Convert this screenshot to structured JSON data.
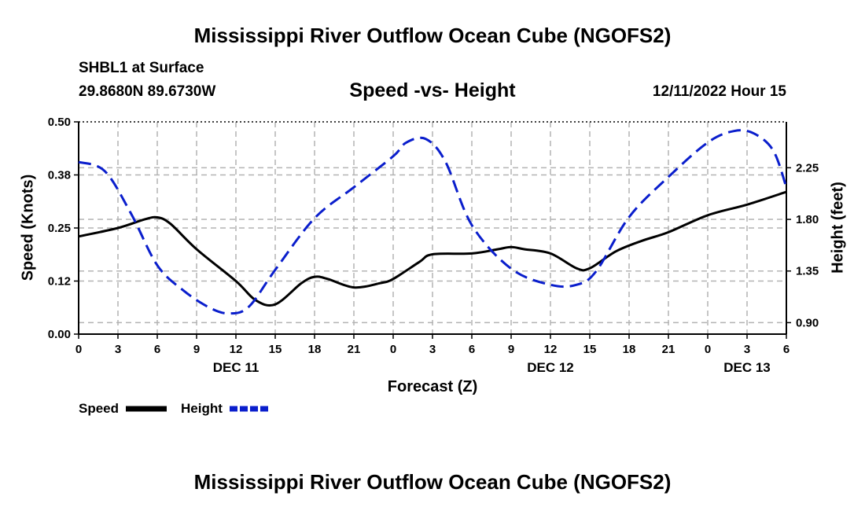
{
  "header": {
    "title": "Mississippi River Outflow Ocean Cube (NGOFS2)",
    "station": "SHBL1 at Surface",
    "coords": "29.8680N  89.6730W",
    "subtitle": "Speed -vs- Height",
    "datetime": "12/11/2022 Hour 15"
  },
  "footer": {
    "title": "Mississippi River Outflow Ocean Cube (NGOFS2)"
  },
  "legend": {
    "speed_label": "Speed",
    "height_label": "Height"
  },
  "colors": {
    "speed": "#000000",
    "height": "#0a1ecc",
    "grid": "#b4b4b4"
  },
  "chart_data": {
    "type": "line",
    "title": "Speed -vs- Height",
    "xlabel": "Forecast (Z)",
    "ylabel_left": "Speed (Knots)",
    "ylabel_right": "Height (feet)",
    "xlim": [
      0,
      54
    ],
    "x_ticks": [
      0,
      3,
      6,
      9,
      12,
      15,
      18,
      21,
      24,
      27,
      30,
      33,
      36,
      39,
      42,
      45,
      48,
      51,
      54
    ],
    "x_tick_labels": [
      "0",
      "3",
      "6",
      "9",
      "12",
      "15",
      "18",
      "21",
      "0",
      "3",
      "6",
      "9",
      "12",
      "15",
      "18",
      "21",
      "0",
      "3",
      "6"
    ],
    "day_labels": [
      {
        "x": 12,
        "label": "DEC 11"
      },
      {
        "x": 36,
        "label": "DEC 12"
      },
      {
        "x": 51,
        "label": "DEC 13"
      }
    ],
    "y_left": {
      "lim": [
        0.0,
        0.5
      ],
      "ticks": [
        0.0,
        0.125,
        0.25,
        0.375,
        0.5
      ],
      "tick_labels": [
        "0.00",
        "0.12",
        "0.25",
        "0.38",
        "0.50"
      ]
    },
    "y_right": {
      "lim": [
        0.8,
        2.65
      ],
      "ticks": [
        0.9,
        1.35,
        1.8,
        2.25
      ],
      "tick_labels": [
        "0.90",
        "1.35",
        "1.80",
        "2.25"
      ]
    },
    "grid": true,
    "legend_position": "bottom-left",
    "series": [
      {
        "name": "Speed",
        "axis": "left",
        "style": "solid",
        "x": [
          0,
          3,
          5,
          6,
          7,
          9,
          12,
          13.5,
          15,
          17,
          18,
          19,
          21,
          23,
          24,
          26,
          27,
          30,
          32,
          33,
          34,
          36,
          38,
          39,
          41,
          43,
          45,
          48,
          51,
          54
        ],
        "values": [
          0.23,
          0.25,
          0.27,
          0.275,
          0.26,
          0.2,
          0.125,
          0.08,
          0.07,
          0.12,
          0.135,
          0.13,
          0.11,
          0.12,
          0.13,
          0.17,
          0.188,
          0.19,
          0.2,
          0.205,
          0.2,
          0.19,
          0.155,
          0.155,
          0.195,
          0.22,
          0.24,
          0.28,
          0.305,
          0.335
        ]
      },
      {
        "name": "Height",
        "axis": "right",
        "style": "dashed",
        "x": [
          0,
          2,
          4,
          6,
          8,
          10,
          11.5,
          13,
          15,
          18,
          21,
          24,
          25,
          26.5,
          28,
          30,
          33,
          36,
          38,
          39.5,
          42,
          45,
          48,
          50,
          51.5,
          53,
          54
        ],
        "values": [
          2.3,
          2.22,
          1.85,
          1.4,
          1.18,
          1.03,
          0.98,
          1.04,
          1.36,
          1.81,
          2.08,
          2.35,
          2.47,
          2.5,
          2.3,
          1.75,
          1.37,
          1.23,
          1.23,
          1.35,
          1.82,
          2.17,
          2.47,
          2.57,
          2.55,
          2.4,
          2.08
        ]
      }
    ]
  }
}
